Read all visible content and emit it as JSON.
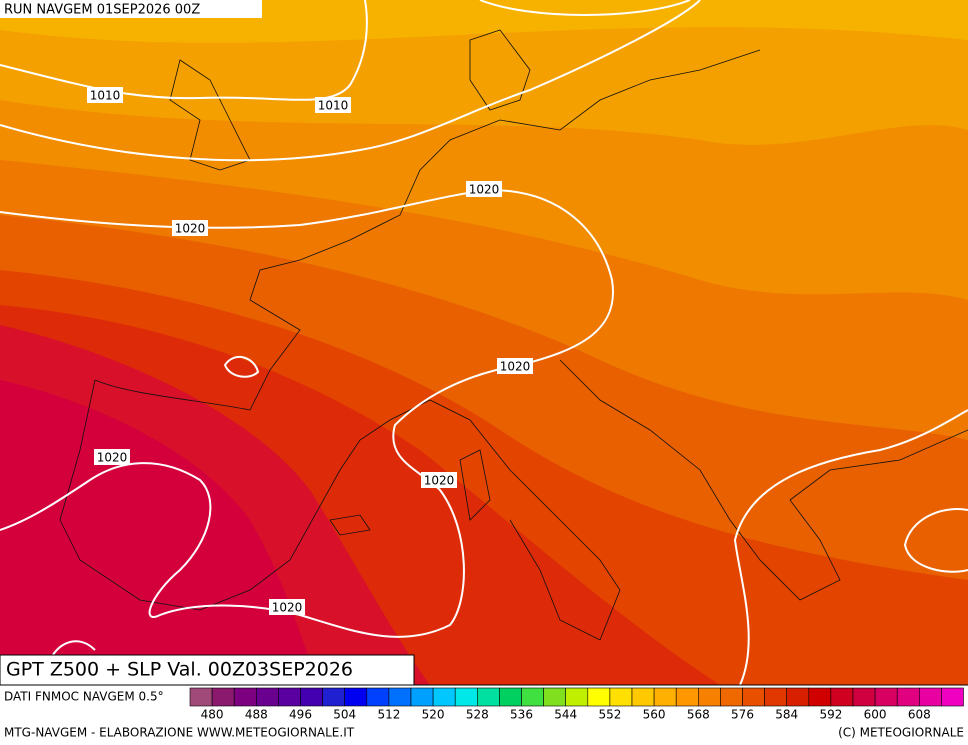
{
  "header": {
    "run": "RUN NAVGEM 01SEP2026 00Z"
  },
  "title": "GPT Z500 + SLP Val. 00Z03SEP2026",
  "isobar_labels": [
    1010,
    1010,
    1020,
    1020,
    1020,
    1020,
    1020,
    1020
  ],
  "colorbar": {
    "source": "DATI FNMOC NAVGEM 0.5°",
    "labels": [
      480,
      488,
      496,
      504,
      512,
      520,
      528,
      536,
      544,
      552,
      560,
      568,
      576,
      584,
      592,
      600,
      608
    ]
  },
  "footer": {
    "left": "MTG-NAVGEM - ELABORAZIONE WWW.METEOGIORNALE.IT",
    "right": "(C) METEOGIORNALE"
  }
}
